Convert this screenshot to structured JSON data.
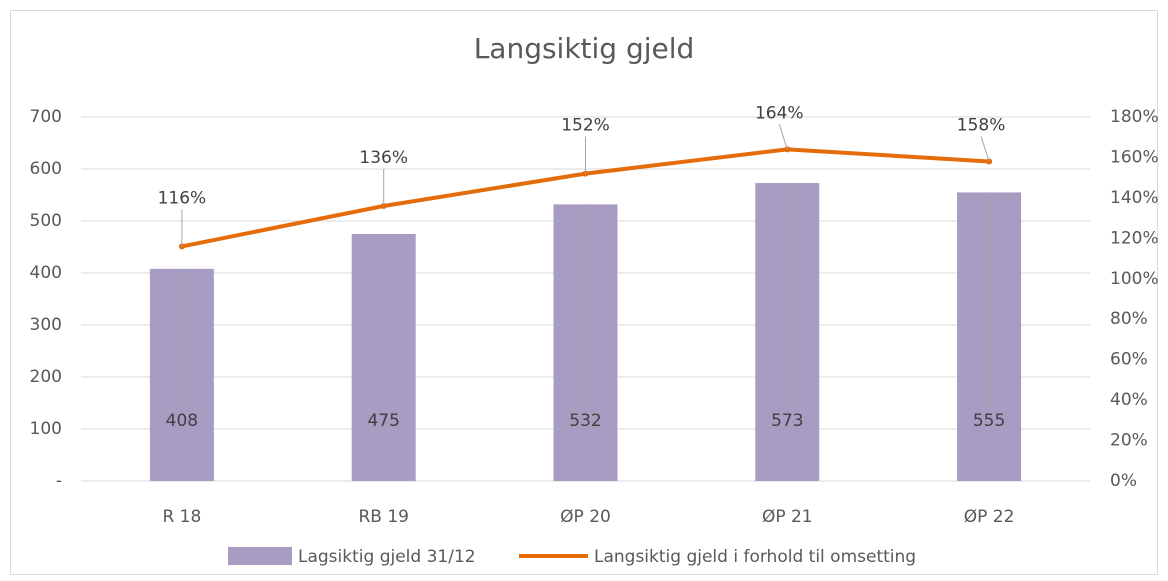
{
  "chart_data": {
    "type": "bar_line",
    "title": "Langsiktig gjeld",
    "categories": [
      "R 18",
      "RB 19",
      "ØP 20",
      "ØP 21",
      "ØP 22"
    ],
    "series": [
      {
        "name": "Lagsiktig gjeld 31/12",
        "type": "bar",
        "color": "#a99cc2",
        "values": [
          408,
          475,
          532,
          573,
          555
        ]
      },
      {
        "name": "Langsiktig gjeld i forhold til omsetting",
        "type": "line",
        "axis": "y2",
        "color": "#e46c0a",
        "values": [
          116,
          136,
          152,
          164,
          158
        ],
        "value_labels": [
          "116%",
          "136%",
          "152%",
          "164%",
          "158%"
        ]
      }
    ],
    "ylim": [
      0,
      700
    ],
    "yticks": [
      {
        "value": 0,
        "label": "-"
      },
      100,
      200,
      300,
      400,
      500,
      600,
      700
    ],
    "y2lim": [
      0,
      180
    ],
    "y2ticks": [
      {
        "value": 0,
        "label": "0%"
      },
      {
        "value": 20,
        "label": "20%"
      },
      {
        "value": 40,
        "label": "40%"
      },
      {
        "value": 60,
        "label": "60%"
      },
      {
        "value": 80,
        "label": "80%"
      },
      {
        "value": 100,
        "label": "100%"
      },
      {
        "value": 120,
        "label": "120%"
      },
      {
        "value": 140,
        "label": "140%"
      },
      {
        "value": 160,
        "label": "160%"
      },
      {
        "value": 180,
        "label": "180%"
      }
    ],
    "grid": true,
    "legend": "bottom"
  }
}
